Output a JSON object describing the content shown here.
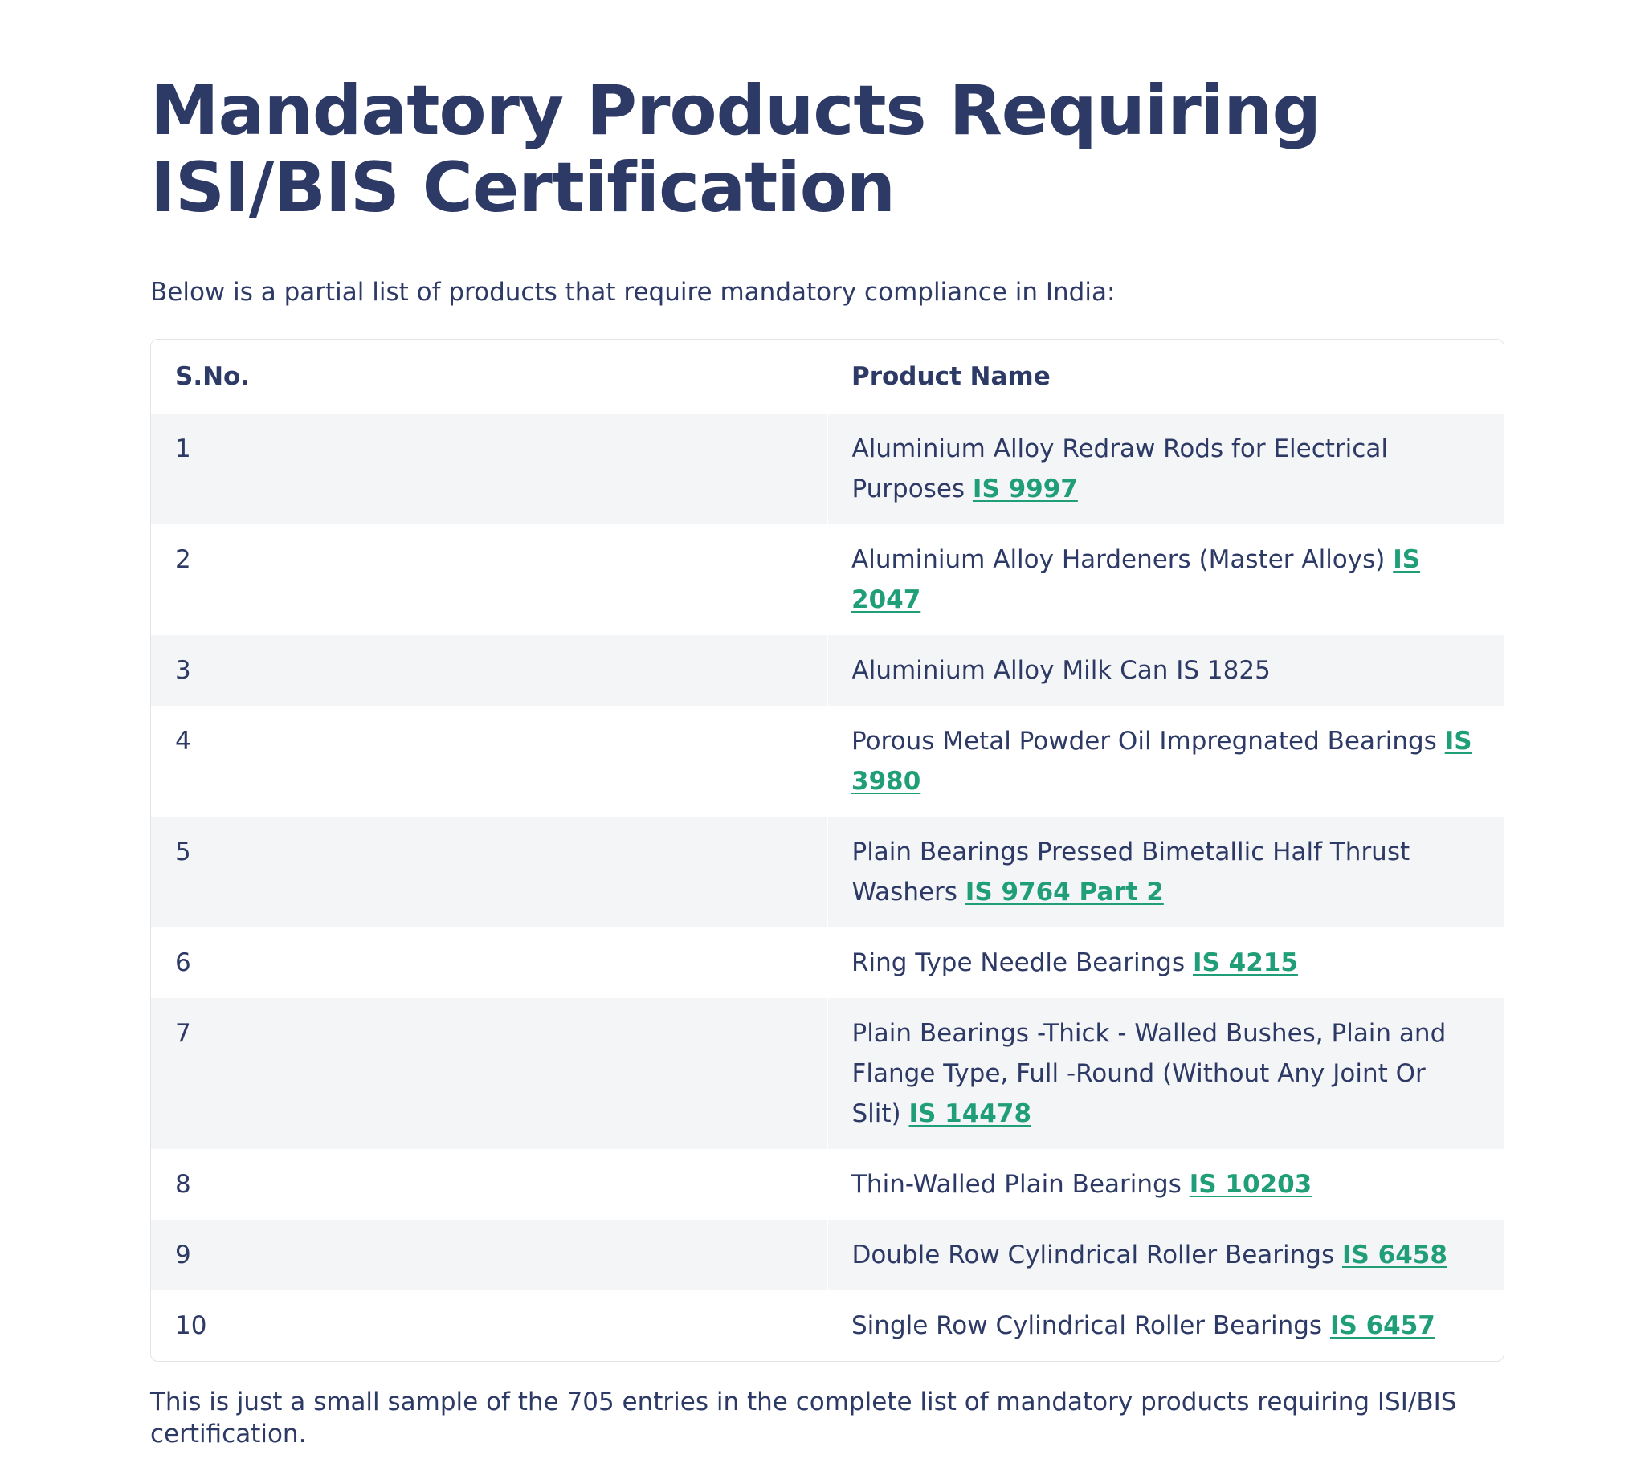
{
  "title_line1": "Mandatory Products Requiring",
  "title_line2": "ISI/BIS Certification",
  "intro": "Below is a partial list of products that require mandatory compliance in India:",
  "table": {
    "headers": [
      "S.No.",
      "Product Name"
    ],
    "rows": [
      {
        "sno": "1",
        "product": "Aluminium Alloy Redraw Rods for Electrical Purposes",
        "standard": "IS 9997"
      },
      {
        "sno": "2",
        "product": "Aluminium Alloy Hardeners (Master Alloys)",
        "standard": "IS 2047"
      },
      {
        "sno": "3",
        "product": "Aluminium Alloy Milk Can IS 1825",
        "standard": ""
      },
      {
        "sno": "4",
        "product": "Porous Metal Powder Oil Impregnated Bearings",
        "standard": "IS 3980"
      },
      {
        "sno": "5",
        "product": "Plain Bearings Pressed Bimetallic Half Thrust Washers",
        "standard": "IS 9764 Part 2"
      },
      {
        "sno": "6",
        "product": "Ring Type Needle Bearings",
        "standard": "IS 4215"
      },
      {
        "sno": "7",
        "product": "Plain Bearings -Thick - Walled Bushes, Plain and Flange Type, Full -Round (Without Any Joint Or Slit)",
        "standard": "IS 14478"
      },
      {
        "sno": "8",
        "product": "Thin-Walled Plain Bearings",
        "standard": "IS 10203"
      },
      {
        "sno": "9",
        "product": "Double Row Cylindrical Roller Bearings",
        "standard": "IS 6458"
      },
      {
        "sno": "10",
        "product": "Single Row Cylindrical Roller Bearings",
        "standard": "IS 6457"
      }
    ]
  },
  "outro": "This is just a small sample of the 705 entries in the complete list of mandatory products requiring ISI/BIS certification.",
  "colors": {
    "heading": "#2e3a66",
    "link": "#1f9e78",
    "row_shade": "#f4f5f6",
    "border": "#e2e4e8"
  }
}
